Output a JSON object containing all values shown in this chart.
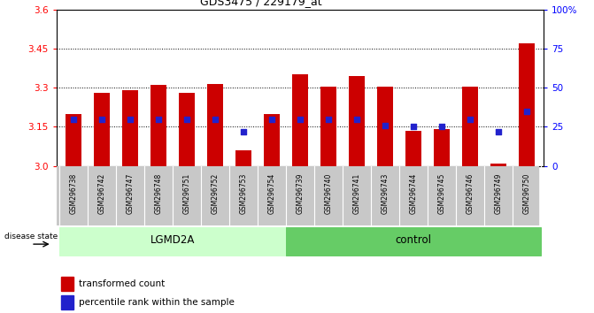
{
  "title": "GDS3475 / 229179_at",
  "samples": [
    "GSM296738",
    "GSM296742",
    "GSM296747",
    "GSM296748",
    "GSM296751",
    "GSM296752",
    "GSM296753",
    "GSM296754",
    "GSM296739",
    "GSM296740",
    "GSM296741",
    "GSM296743",
    "GSM296744",
    "GSM296745",
    "GSM296746",
    "GSM296749",
    "GSM296750"
  ],
  "transformed_counts": [
    3.2,
    3.28,
    3.29,
    3.31,
    3.28,
    3.315,
    3.06,
    3.2,
    3.35,
    3.305,
    3.345,
    3.305,
    3.135,
    3.14,
    3.305,
    3.01,
    3.47
  ],
  "percentile_ranks": [
    30,
    30,
    30,
    30,
    30,
    30,
    22,
    30,
    30,
    30,
    30,
    26,
    25,
    25,
    30,
    22,
    35
  ],
  "groups": [
    "LGMD2A",
    "LGMD2A",
    "LGMD2A",
    "LGMD2A",
    "LGMD2A",
    "LGMD2A",
    "LGMD2A",
    "LGMD2A",
    "control",
    "control",
    "control",
    "control",
    "control",
    "control",
    "control",
    "control",
    "control"
  ],
  "ylim_left": [
    3.0,
    3.6
  ],
  "ylim_right": [
    0,
    100
  ],
  "yticks_left": [
    3.0,
    3.15,
    3.3,
    3.45,
    3.6
  ],
  "yticks_right": [
    0,
    25,
    50,
    75,
    100
  ],
  "hlines": [
    3.15,
    3.3,
    3.45
  ],
  "bar_color": "#cc0000",
  "dot_color": "#2222cc",
  "bar_bottom": 3.0,
  "lgmd2a_color": "#ccffcc",
  "control_color": "#66cc66",
  "disease_state_label": "disease state",
  "legend_items": [
    "transformed count",
    "percentile rank within the sample"
  ],
  "legend_colors": [
    "#cc0000",
    "#2222cc"
  ],
  "sample_label_bg": "#c8c8c8"
}
